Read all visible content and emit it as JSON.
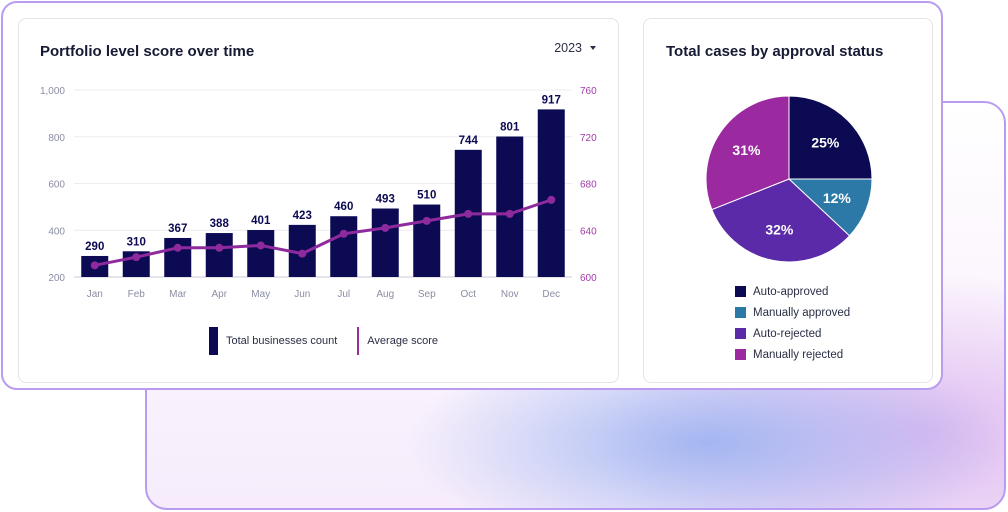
{
  "left_card": {
    "title": "Portfolio level score over time",
    "year": "2023",
    "legend": {
      "bars": "Total businesses count",
      "line": "Average score"
    }
  },
  "right_card": {
    "title": "Total cases by approval status",
    "legend": [
      {
        "label": "Auto-approved",
        "color": "#0c0a52"
      },
      {
        "label": "Manually approved",
        "color": "#2c79a8"
      },
      {
        "label": "Auto-rejected",
        "color": "#5a2aa8"
      },
      {
        "label": "Manually rejected",
        "color": "#9b2aa0"
      }
    ]
  },
  "chart_data": [
    {
      "type": "bar",
      "title": "Portfolio level score over time",
      "categories": [
        "Jan",
        "Feb",
        "Mar",
        "Apr",
        "May",
        "Jun",
        "Jul",
        "Aug",
        "Sep",
        "Oct",
        "Nov",
        "Dec"
      ],
      "series": [
        {
          "name": "Total businesses count",
          "type": "bar",
          "axis": "left",
          "color": "#0c0a52",
          "values": [
            290,
            310,
            367,
            388,
            401,
            423,
            460,
            493,
            510,
            744,
            801,
            917
          ]
        },
        {
          "name": "Average score",
          "type": "line",
          "axis": "right",
          "color": "#8e2a9e",
          "values": [
            610,
            617,
            625,
            625,
            627,
            620,
            637,
            642,
            648,
            654,
            654,
            666
          ]
        }
      ],
      "left_axis": {
        "ticks": [
          "1,000",
          "800",
          "600",
          "400",
          "200"
        ],
        "tick_values": [
          1000,
          800,
          600,
          400,
          200
        ],
        "ylim": [
          200,
          1000
        ]
      },
      "right_axis": {
        "ticks": [
          "760",
          "720",
          "680",
          "640",
          "600"
        ],
        "tick_values": [
          760,
          720,
          680,
          640,
          600
        ],
        "ylim": [
          600,
          760
        ],
        "color": "#a23ba8"
      },
      "legend": "bottom",
      "grid": true
    },
    {
      "type": "pie",
      "title": "Total cases by approval status",
      "labels": [
        "Auto-approved",
        "Manually approved",
        "Auto-rejected",
        "Manually rejected"
      ],
      "values": [
        25,
        12,
        32,
        31
      ],
      "value_labels": [
        "25%",
        "12%",
        "32%",
        "31%"
      ],
      "colors": [
        "#0c0a52",
        "#2c79a8",
        "#5a2aa8",
        "#9b2aa0"
      ],
      "legend": "bottom"
    }
  ]
}
